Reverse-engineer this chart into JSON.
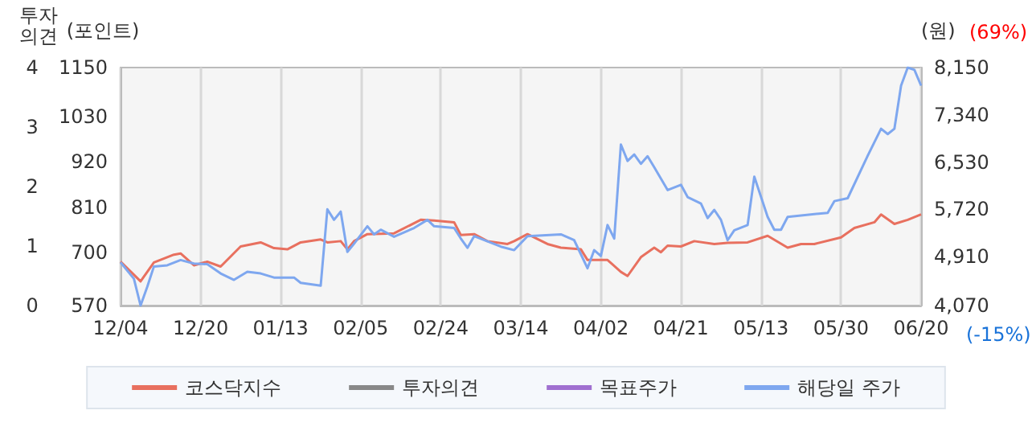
{
  "chart_data": {
    "type": "line",
    "ylabel": "투자\n의견",
    "y2label": "(포인트)",
    "y3label": "(원)",
    "annotations": [
      "(69%)",
      "(-15%)"
    ],
    "categories": [
      "12/04",
      null,
      null,
      null,
      null,
      null,
      null,
      null,
      null,
      null,
      null,
      null,
      "12/20",
      null,
      null,
      null,
      null,
      null,
      null,
      null,
      null,
      null,
      null,
      null,
      "01/13",
      null,
      null,
      null,
      null,
      null,
      null,
      null,
      null,
      null,
      null,
      null,
      "02/05",
      null,
      null,
      null,
      null,
      null,
      null,
      null,
      null,
      null,
      null,
      null,
      "02/24",
      null,
      null,
      null,
      null,
      null,
      null,
      null,
      null,
      null,
      null,
      null,
      "03/14",
      null,
      null,
      null,
      null,
      null,
      null,
      null,
      null,
      null,
      null,
      null,
      "04/02",
      null,
      null,
      null,
      null,
      null,
      null,
      null,
      null,
      null,
      null,
      null,
      "04/21",
      null,
      null,
      null,
      null,
      null,
      null,
      null,
      null,
      null,
      null,
      null,
      "05/13",
      null,
      null,
      null,
      null,
      null,
      null,
      null,
      null,
      null,
      null,
      null,
      "05/30",
      null,
      null,
      null,
      null,
      null,
      null,
      null,
      null,
      null,
      null,
      null,
      "06/20"
    ],
    "ylim": [
      0,
      4
    ],
    "yticks": [
      0,
      1,
      2,
      3,
      4
    ],
    "y2lim": [
      570,
      1150
    ],
    "y2ticks": [
      570,
      700,
      810,
      920,
      1030,
      1150
    ],
    "y3lim": [
      4070,
      8150
    ],
    "y3ticks": [
      {
        "value": 4070,
        "label": "4,070"
      },
      {
        "value": 4910,
        "label": "4,910"
      },
      {
        "value": 5720,
        "label": "5,720"
      },
      {
        "value": 6530,
        "label": "6,530"
      },
      {
        "value": 7340,
        "label": "7,340"
      },
      {
        "value": 8150,
        "label": "8,150"
      }
    ],
    "grid": "x",
    "legend": "bottom",
    "marker": "none",
    "line_style": "solid",
    "series": [
      {
        "name": "코스닥지수",
        "color": "#e8705f",
        "axis": "y2",
        "values": [
          677,
          null,
          null,
          629,
          null,
          675,
          null,
          null,
          694,
          697,
          null,
          668,
          null,
          677,
          null,
          665,
          null,
          null,
          714,
          null,
          null,
          724,
          null,
          710,
          null,
          707,
          null,
          724,
          null,
          null,
          731,
          724,
          null,
          727,
          707,
          727,
          null,
          744,
          null,
          null,
          null,
          746,
          null,
          null,
          null,
          779,
          null,
          777,
          null,
          null,
          773,
          742,
          null,
          744,
          null,
          727,
          null,
          null,
          720,
          727,
          null,
          744,
          null,
          null,
          720,
          null,
          711,
          null,
          null,
          707,
          681,
          null,
          null,
          681,
          null,
          652,
          642,
          null,
          688,
          null,
          711,
          700,
          716,
          null,
          714,
          null,
          727,
          null,
          null,
          720,
          null,
          723,
          null,
          null,
          724,
          null,
          null,
          740,
          null,
          null,
          711,
          null,
          720,
          null,
          720,
          null,
          null,
          null,
          736,
          null,
          759,
          null,
          null,
          773,
          792,
          null,
          769,
          null,
          779,
          null,
          792
        ]
      },
      {
        "name": "투자의견",
        "color": "#888888",
        "axis": "y",
        "values": [
          null,
          null,
          null,
          null,
          null,
          null,
          null,
          null,
          null,
          null,
          null,
          null,
          null,
          null,
          null,
          null,
          null,
          null,
          null,
          null,
          null,
          null,
          null,
          null,
          null,
          null,
          null,
          null,
          null,
          null,
          null,
          null,
          null,
          null,
          null,
          null,
          null,
          null,
          null,
          null,
          null,
          null,
          null,
          null,
          null,
          null,
          null,
          null,
          null,
          null,
          null,
          null,
          null,
          null,
          null,
          null,
          null,
          null,
          null,
          null,
          null,
          null,
          null,
          null,
          null,
          null,
          null,
          null,
          null,
          null,
          null,
          null,
          null,
          null,
          null,
          null,
          null,
          null,
          null,
          null,
          null,
          null,
          null,
          null,
          null,
          null,
          null,
          null,
          null,
          null,
          null,
          null,
          null,
          null,
          null,
          null,
          null,
          null,
          null,
          null,
          null,
          null,
          null,
          null,
          null,
          null,
          null,
          null,
          null,
          null,
          null,
          null,
          null,
          null,
          null,
          null,
          null,
          null,
          null,
          null,
          null
        ]
      },
      {
        "name": "목표주가",
        "color": "#a070d0",
        "axis": "y3",
        "values": [
          null,
          null,
          null,
          null,
          null,
          null,
          null,
          null,
          null,
          null,
          null,
          null,
          null,
          null,
          null,
          null,
          null,
          null,
          null,
          null,
          null,
          null,
          null,
          null,
          null,
          null,
          null,
          null,
          null,
          null,
          null,
          null,
          null,
          null,
          null,
          null,
          null,
          null,
          null,
          null,
          null,
          null,
          null,
          null,
          null,
          null,
          null,
          null,
          null,
          null,
          null,
          null,
          null,
          null,
          null,
          null,
          null,
          null,
          null,
          null,
          null,
          null,
          null,
          null,
          null,
          null,
          null,
          null,
          null,
          null,
          null,
          null,
          null,
          null,
          null,
          null,
          null,
          null,
          null,
          null,
          null,
          null,
          null,
          null,
          null,
          null,
          null,
          null,
          null,
          null,
          null,
          null,
          null,
          null,
          null,
          null,
          null,
          null,
          null,
          null,
          null,
          null,
          null,
          null,
          null,
          null,
          null,
          null,
          null,
          null,
          null,
          null,
          null,
          null,
          null,
          null,
          null,
          null,
          null,
          null,
          null
        ]
      },
      {
        "name": "해당일 주가",
        "color": "#7ea7ef",
        "axis": "y3",
        "values": [
          4810,
          null,
          4530,
          4070,
          4390,
          4740,
          null,
          4760,
          null,
          4850,
          null,
          4790,
          null,
          4780,
          null,
          4620,
          null,
          4510,
          null,
          4650,
          null,
          4620,
          null,
          4550,
          null,
          null,
          4550,
          4460,
          null,
          null,
          4410,
          5720,
          5540,
          5680,
          4990,
          5130,
          null,
          5430,
          5290,
          5370,
          null,
          5250,
          null,
          null,
          5400,
          null,
          5540,
          5430,
          null,
          null,
          5400,
          5220,
          5060,
          5260,
          null,
          null,
          null,
          5080,
          null,
          5020,
          null,
          5260,
          null,
          null,
          null,
          null,
          5290,
          null,
          5190,
          null,
          4710,
          5020,
          4920,
          5450,
          5220,
          6830,
          6550,
          6660,
          6500,
          6630,
          6440,
          null,
          6050,
          null,
          6140,
          5930,
          null,
          5820,
          5570,
          5710,
          5540,
          5190,
          5360,
          null,
          5450,
          6280,
          null,
          5590,
          5370,
          5370,
          5590,
          null,
          null,
          null,
          null,
          null,
          5660,
          5860,
          null,
          5910,
          null,
          null,
          6640,
          null,
          7100,
          7010,
          7100,
          7840,
          8150,
          8110,
          7840
        ]
      }
    ]
  }
}
